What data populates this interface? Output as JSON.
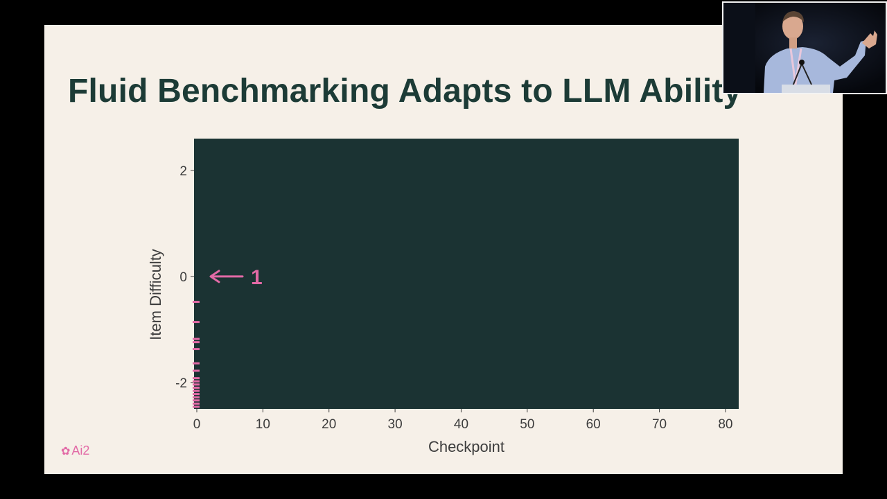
{
  "slide": {
    "title": "Fluid Benchmarking Adapts to LLM Ability",
    "logo_text": "Ai2",
    "logo_icon": "ai2-flower-icon"
  },
  "chart_data": {
    "type": "scatter",
    "title": "",
    "xlabel": "Checkpoint",
    "ylabel": "Item Difficulty",
    "xlim": [
      0,
      82
    ],
    "ylim": [
      -2.5,
      2.6
    ],
    "xticks": [
      0,
      10,
      20,
      30,
      40,
      50,
      60,
      70,
      80
    ],
    "yticks": [
      2,
      0,
      -2
    ],
    "grid": false,
    "plot_background": "#1b3333",
    "series": [
      {
        "marker": "horizontal-tick",
        "color": "#e26aa6",
        "points": [
          {
            "x": 0,
            "y": -0.48
          },
          {
            "x": 0,
            "y": -0.86
          },
          {
            "x": 0,
            "y": -1.18
          },
          {
            "x": 0,
            "y": -1.24
          },
          {
            "x": 0,
            "y": -1.37
          },
          {
            "x": 0,
            "y": -1.64
          },
          {
            "x": 0,
            "y": -1.78
          },
          {
            "x": 0,
            "y": -1.92
          },
          {
            "x": 0,
            "y": -1.98
          },
          {
            "x": 0,
            "y": -2.04
          },
          {
            "x": 0,
            "y": -2.1
          },
          {
            "x": 0,
            "y": -2.16
          },
          {
            "x": 0,
            "y": -2.22
          },
          {
            "x": 0,
            "y": -2.28
          },
          {
            "x": 0,
            "y": -2.34
          },
          {
            "x": 0,
            "y": -2.4
          },
          {
            "x": 0,
            "y": -2.46
          }
        ]
      }
    ],
    "annotations": [
      {
        "text": "1",
        "x": 0,
        "y": 0,
        "arrow": "left",
        "color": "#e26aa6"
      }
    ]
  },
  "colors": {
    "slide_background": "#f6f0e8",
    "title": "#1c3b36",
    "accent": "#e26aa6",
    "axis_text": "#3c3c3c"
  },
  "webcam": {
    "content": "presenter-video-feed"
  }
}
